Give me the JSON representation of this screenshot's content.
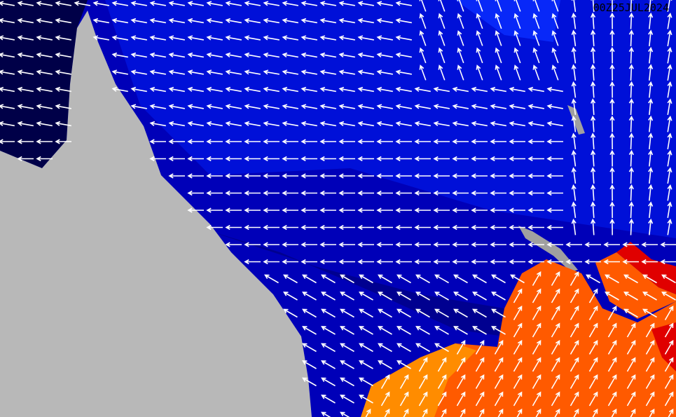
{
  "timestamp": "00Z25JUL2024",
  "colors": {
    "ocean_deep": "#0000a8",
    "ocean_mid": "#0010d0",
    "ocean_light": "#0020f0",
    "gulf_dark": "#000040",
    "land": "#b8b8b8",
    "swell_orange": "#ff5a00",
    "swell_light_orange": "#ff8c00",
    "swell_red": "#e00000",
    "arrow": "#ffffff"
  }
}
